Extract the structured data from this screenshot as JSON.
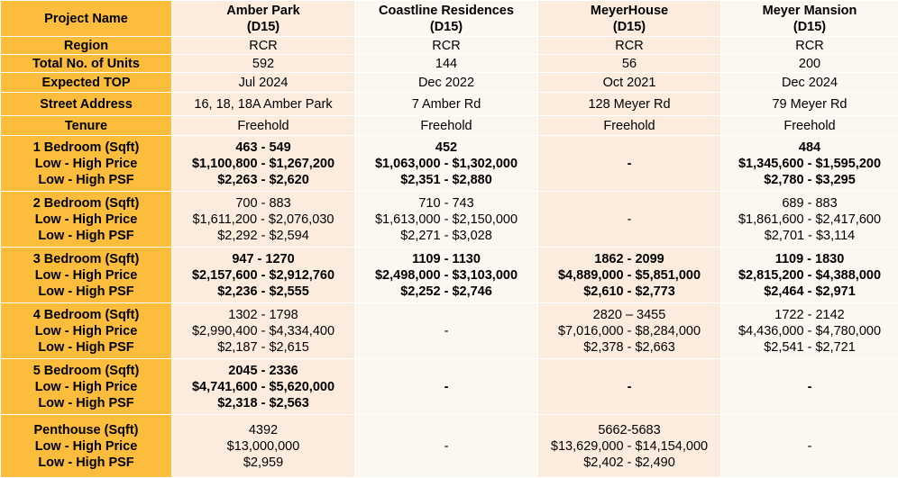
{
  "header": {
    "label": "Project Name",
    "projects": [
      {
        "name": "Amber Park",
        "district": "(D15)"
      },
      {
        "name": "Coastline Residences",
        "district": "(D15)"
      },
      {
        "name": "MeyerHouse",
        "district": "(D15)"
      },
      {
        "name": "Meyer Mansion",
        "district": "(D15)"
      }
    ]
  },
  "simple_rows": [
    {
      "label": "Region",
      "values": [
        "RCR",
        "RCR",
        "RCR",
        "RCR"
      ]
    },
    {
      "label": "Total No. of Units",
      "values": [
        "592",
        "144",
        "56",
        "200"
      ]
    },
    {
      "label": "Expected TOP",
      "values": [
        "Jul 2024",
        "Dec 2022",
        "Oct 2021",
        "Dec 2024"
      ]
    },
    {
      "label": "Street Address",
      "values": [
        "16, 18, 18A Amber Park",
        "7 Amber Rd",
        "128 Meyer Rd",
        "79 Meyer Rd"
      ]
    },
    {
      "label": "Tenure",
      "values": [
        "Freehold",
        "Freehold",
        "Freehold",
        "Freehold"
      ]
    }
  ],
  "unit_groups": [
    {
      "labels": [
        "1 Bedroom (Sqft)",
        "Low - High Price",
        "Low - High PSF"
      ],
      "bold": true,
      "cells": [
        [
          "463 - 549",
          "$1,100,800 - $1,267,200",
          "$2,263 - $2,620"
        ],
        [
          "452",
          "$1,063,000 - $1,302,000",
          "$2,351 - $2,880"
        ],
        [
          "-"
        ],
        [
          "484",
          "$1,345,600 - $1,595,200",
          "$2,780 - $3,295"
        ]
      ]
    },
    {
      "labels": [
        "2 Bedroom (Sqft)",
        "Low - High Price",
        "Low - High PSF"
      ],
      "bold": false,
      "cells": [
        [
          "700 - 883",
          "$1,611,200 - $2,076,030",
          "$2,292 - $2,594"
        ],
        [
          "710 - 743",
          "$1,613,000 - $2,150,000",
          "$2,271 - $3,028"
        ],
        [
          "-"
        ],
        [
          "689 - 883",
          "$1,861,600 - $2,417,600",
          "$2,701 - $3,114"
        ]
      ]
    },
    {
      "labels": [
        "3 Bedroom (Sqft)",
        "Low - High Price",
        "Low - High PSF"
      ],
      "bold": true,
      "cells": [
        [
          "947 - 1270",
          "$2,157,600 - $2,912,760",
          "$2,236 - $2,555"
        ],
        [
          "1109 - 1130",
          "$2,498,000 - $3,103,000",
          "$2,252 - $2,746"
        ],
        [
          "1862 - 2099",
          "$4,889,000 - $5,851,000",
          "$2,610 - $2,773"
        ],
        [
          "1109 - 1830",
          "$2,815,200 - $4,388,000",
          "$2,464 - $2,971"
        ]
      ]
    },
    {
      "labels": [
        "4 Bedroom (Sqft)",
        "Low - High Price",
        "Low - High PSF"
      ],
      "bold": false,
      "cells": [
        [
          "1302 - 1798",
          "$2,990,400 - $4,334,400",
          "$2,187 - $2,615"
        ],
        [
          "-"
        ],
        [
          "2820 – 3455",
          "$7,016,000 - $8,284,000",
          "$2,378 - $2,663"
        ],
        [
          "1722 - 2142",
          "$4,436,000 - $4,780,000",
          "$2,541 - $2,721"
        ]
      ]
    },
    {
      "labels": [
        "5 Bedroom (Sqft)",
        "Low - High Price",
        "Low - High PSF"
      ],
      "bold": true,
      "cells": [
        [
          "2045 - 2336",
          "$4,741,600 - $5,620,000",
          "$2,318 - $2,563"
        ],
        [
          "-"
        ],
        [
          "-"
        ],
        [
          "-"
        ]
      ]
    },
    {
      "labels": [
        "Penthouse (Sqft)",
        "Low - High Price",
        "Low - High PSF"
      ],
      "bold": false,
      "cells": [
        [
          "4392",
          "$13,000,000",
          "$2,959"
        ],
        [
          "-"
        ],
        [
          "5662-5683",
          "$13,629,000 - $14,154,000",
          "$2,402 - $2,490"
        ],
        [
          "-"
        ]
      ]
    }
  ],
  "colors": {
    "header": "#fcbd3c",
    "col_a": "#fcecdd",
    "col_b": "#fdf7f1"
  }
}
